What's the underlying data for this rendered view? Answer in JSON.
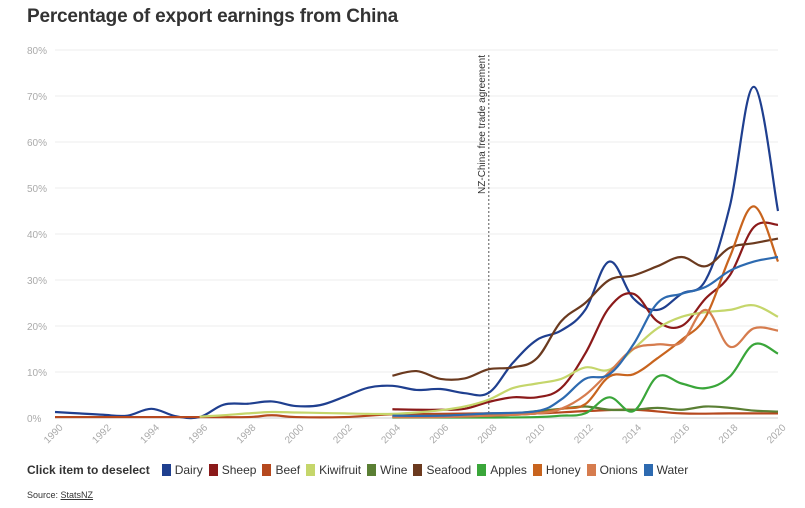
{
  "title": "Percentage of export earnings from China",
  "legend_title": "Click item to deselect",
  "source_prefix": "Source: ",
  "source_link": "StatsNZ",
  "chart_data": {
    "type": "line",
    "title": "Percentage of export earnings from China",
    "xlabel": "",
    "ylabel": "",
    "xlim": [
      1990,
      2020
    ],
    "ylim": [
      0,
      80
    ],
    "x_ticks": [
      "1990",
      "1992",
      "1994",
      "1996",
      "1998",
      "2000",
      "2002",
      "2004",
      "2006",
      "2008",
      "2010",
      "2012",
      "2014",
      "2016",
      "2018",
      "2020"
    ],
    "y_ticks": [
      "0%",
      "10%",
      "20%",
      "30%",
      "40%",
      "50%",
      "60%",
      "70%",
      "80%"
    ],
    "grid": true,
    "legend_position": "bottom",
    "annotation": {
      "x": 2008,
      "label": "NZ-China free trade agreement"
    },
    "series": [
      {
        "name": "Dairy",
        "color": "#1f3f8f",
        "x": [
          1990,
          1991,
          1992,
          1993,
          1994,
          1995,
          1996,
          1997,
          1998,
          1999,
          2000,
          2001,
          2002,
          2003,
          2004,
          2005,
          2006,
          2007,
          2008,
          2009,
          2010,
          2011,
          2012,
          2013,
          2014,
          2015,
          2016,
          2017,
          2018,
          2019,
          2020
        ],
        "y": [
          1.3,
          1.0,
          0.7,
          0.5,
          2.0,
          0.4,
          0.2,
          2.9,
          3.1,
          3.6,
          2.6,
          2.8,
          4.6,
          6.6,
          7.0,
          6.1,
          6.3,
          5.4,
          5.5,
          12.0,
          17.0,
          19.0,
          23.5,
          34.0,
          26.0,
          23.5,
          27.0,
          30.0,
          46.0,
          72.0,
          45.0
        ]
      },
      {
        "name": "Sheep",
        "color": "#8b1a1a",
        "x": [
          2004,
          2005,
          2006,
          2007,
          2008,
          2009,
          2010,
          2011,
          2012,
          2013,
          2014,
          2015,
          2016,
          2017,
          2018,
          2019,
          2020
        ],
        "y": [
          1.9,
          1.8,
          1.8,
          2.0,
          3.5,
          4.5,
          4.5,
          6.5,
          14.0,
          24.0,
          27.0,
          21.0,
          20.0,
          26.0,
          31.0,
          41.5,
          42.0
        ]
      },
      {
        "name": "Beef",
        "color": "#b5481e",
        "x": [
          1990,
          1992,
          1994,
          1996,
          1998,
          1999,
          2000,
          2002,
          2004,
          2006,
          2008,
          2010,
          2012,
          2014,
          2016,
          2018,
          2020
        ],
        "y": [
          0.2,
          0.2,
          0.2,
          0.2,
          0.2,
          0.6,
          0.2,
          0.2,
          0.8,
          0.9,
          1.0,
          1.0,
          1.5,
          1.8,
          1.0,
          1.0,
          1.0
        ]
      },
      {
        "name": "Kiwifruit",
        "color": "#c5d66b",
        "x": [
          1996,
          1997,
          1998,
          1999,
          2000,
          2001,
          2002,
          2003,
          2004,
          2005,
          2006,
          2007,
          2008,
          2009,
          2010,
          2011,
          2012,
          2013,
          2014,
          2015,
          2016,
          2017,
          2018,
          2019,
          2020
        ],
        "y": [
          0.3,
          0.6,
          1.0,
          1.3,
          1.2,
          1.1,
          1.0,
          0.9,
          0.9,
          1.2,
          1.7,
          2.5,
          4.0,
          6.5,
          7.5,
          8.5,
          11.0,
          10.5,
          15.0,
          19.5,
          22.0,
          23.0,
          23.5,
          24.5,
          22.0
        ]
      },
      {
        "name": "Wine",
        "color": "#5a7f34",
        "x": [
          2004,
          2006,
          2008,
          2009,
          2010,
          2011,
          2012,
          2013,
          2014,
          2015,
          2016,
          2017,
          2018,
          2019,
          2020
        ],
        "y": [
          0.3,
          0.5,
          0.8,
          1.0,
          1.5,
          2.0,
          2.5,
          1.8,
          1.8,
          2.2,
          1.8,
          2.5,
          2.2,
          1.6,
          1.4
        ]
      },
      {
        "name": "Seafood",
        "color": "#6b3a1f",
        "x": [
          2004,
          2005,
          2006,
          2007,
          2008,
          2009,
          2010,
          2011,
          2012,
          2013,
          2014,
          2015,
          2016,
          2017,
          2018,
          2019,
          2020
        ],
        "y": [
          9.2,
          10.2,
          8.5,
          8.6,
          10.6,
          11.0,
          13.0,
          21.0,
          25.0,
          30.0,
          31.0,
          33.0,
          35.0,
          33.0,
          37.0,
          38.0,
          39.0
        ]
      },
      {
        "name": "Apples",
        "color": "#3aa63a",
        "x": [
          2004,
          2006,
          2008,
          2010,
          2011,
          2012,
          2013,
          2014,
          2015,
          2016,
          2017,
          2018,
          2019,
          2020
        ],
        "y": [
          0.1,
          0.1,
          0.1,
          0.2,
          0.5,
          1.0,
          4.5,
          1.5,
          9.0,
          7.5,
          6.5,
          9.0,
          16.0,
          14.0
        ]
      },
      {
        "name": "Honey",
        "color": "#c8641e",
        "x": [
          2004,
          2006,
          2008,
          2010,
          2011,
          2012,
          2013,
          2014,
          2015,
          2016,
          2017,
          2018,
          2019,
          2020
        ],
        "y": [
          0.2,
          0.2,
          0.5,
          1.0,
          2.0,
          3.0,
          9.0,
          9.5,
          13.0,
          17.0,
          22.0,
          35.0,
          46.0,
          34.0
        ]
      },
      {
        "name": "Onions",
        "color": "#d67c4e",
        "x": [
          2004,
          2006,
          2008,
          2010,
          2011,
          2012,
          2013,
          2014,
          2015,
          2016,
          2017,
          2018,
          2019,
          2020
        ],
        "y": [
          0.2,
          0.2,
          0.5,
          1.0,
          2.0,
          5.0,
          10.0,
          15.0,
          16.0,
          16.5,
          23.5,
          15.5,
          19.5,
          19.0
        ]
      },
      {
        "name": "Water",
        "color": "#2d6ab0",
        "x": [
          2004,
          2006,
          2008,
          2010,
          2011,
          2012,
          2013,
          2014,
          2015,
          2016,
          2017,
          2018,
          2019,
          2020
        ],
        "y": [
          0.5,
          0.5,
          1.0,
          1.5,
          4.0,
          8.5,
          9.5,
          16.0,
          25.0,
          27.0,
          28.5,
          32.0,
          34.0,
          35.0
        ]
      }
    ]
  }
}
